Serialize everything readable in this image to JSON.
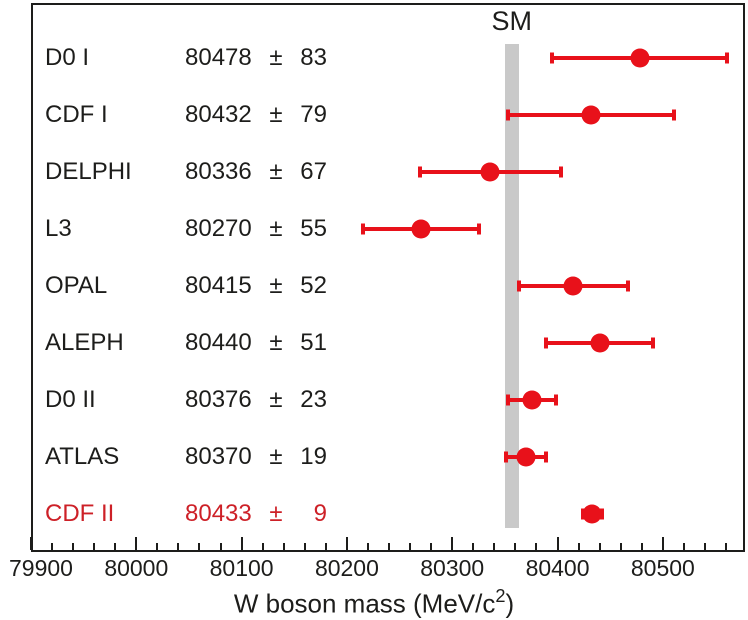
{
  "chart_data": {
    "type": "scatter",
    "title": "",
    "xlabel_prefix": "W boson mass (MeV/c",
    "xlabel_sup": "2",
    "xlabel_suffix": ")",
    "plus_minus": "±",
    "xlim": [
      79900,
      80578
    ],
    "x_major_ticks": [
      79900,
      80000,
      80100,
      80200,
      80300,
      80400,
      80500
    ],
    "x_minor_step": 20,
    "grid": false,
    "legend": "none",
    "sm_band": {
      "label": "SM",
      "from": 80350,
      "to": 80363
    },
    "points": [
      {
        "label": "D0 I",
        "value": 80478,
        "error": 83,
        "highlight": false
      },
      {
        "label": "CDF I",
        "value": 80432,
        "error": 79,
        "highlight": false
      },
      {
        "label": "DELPHI",
        "value": 80336,
        "error": 67,
        "highlight": false
      },
      {
        "label": "L3",
        "value": 80270,
        "error": 55,
        "highlight": false
      },
      {
        "label": "OPAL",
        "value": 80415,
        "error": 52,
        "highlight": false
      },
      {
        "label": "ALEPH",
        "value": 80440,
        "error": 51,
        "highlight": false
      },
      {
        "label": "D0 II",
        "value": 80376,
        "error": 23,
        "highlight": false
      },
      {
        "label": "ATLAS",
        "value": 80370,
        "error": 19,
        "highlight": false
      },
      {
        "label": "CDF II",
        "value": 80433,
        "error": 9,
        "highlight": true
      }
    ],
    "colors": {
      "marker_red": "#e8111a",
      "highlight_text_red": "#cd2027",
      "band_gray": "#c9c9c9",
      "axis_black": "#1d1d1b"
    }
  }
}
